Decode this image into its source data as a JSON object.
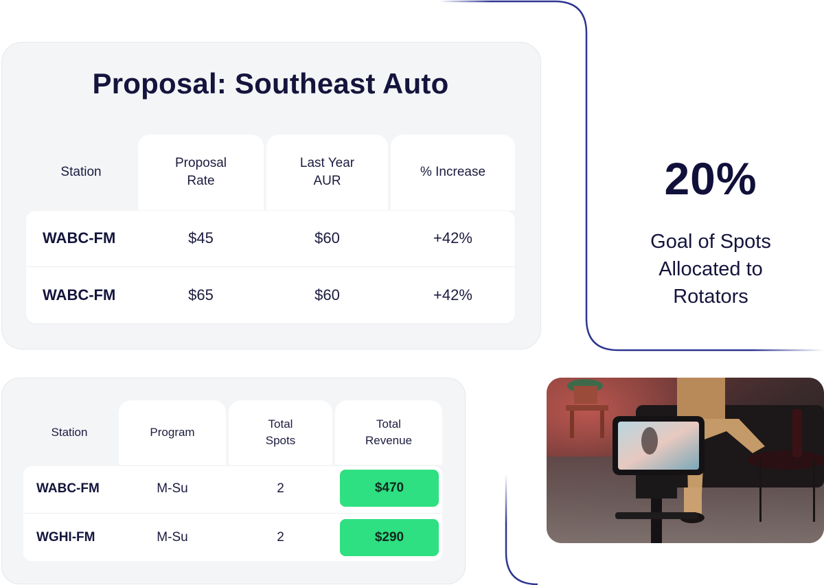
{
  "proposal": {
    "title": "Proposal: Southeast Auto",
    "headers": [
      "Station",
      "Proposal\nRate",
      "Last Year\nAUR",
      "% Increase"
    ],
    "rows": [
      [
        "WABC-FM",
        "$45",
        "$60",
        "+42%"
      ],
      [
        "WABC-FM",
        "$65",
        "$60",
        "+42%"
      ]
    ]
  },
  "revenue": {
    "headers": [
      "Station",
      "Program",
      "Total\nSpots",
      "Total\nRevenue"
    ],
    "rows": [
      [
        "WABC-FM",
        "M-Su",
        "2",
        "$470"
      ],
      [
        "WGHI-FM",
        "M-Su",
        "2",
        "$290"
      ]
    ]
  },
  "stat": {
    "value": "20%",
    "label": "Goal of Spots\nAllocated to\nRotators"
  },
  "colors": {
    "navy": "#14143c",
    "accent_line": "#2e3592",
    "pill_green": "#2ee081",
    "card_bg": "#f4f5f7"
  }
}
